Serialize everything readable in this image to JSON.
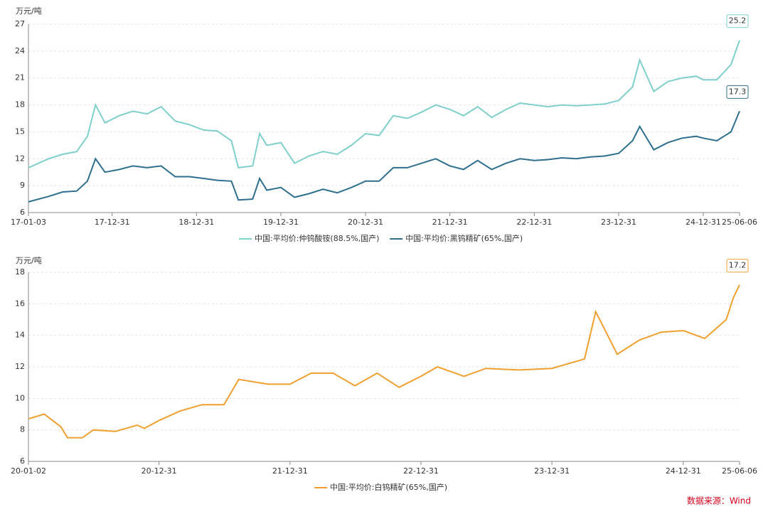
{
  "chart_data": [
    {
      "type": "line",
      "y_label": "万元/吨",
      "x": [
        "17-01-03",
        "17-03-31",
        "17-05-31",
        "17-07-31",
        "17-09-15",
        "17-10-20",
        "17-11-30",
        "18-01-31",
        "18-03-31",
        "18-05-31",
        "18-07-31",
        "18-09-30",
        "18-11-30",
        "19-01-31",
        "19-03-31",
        "19-05-31",
        "19-06-30",
        "19-08-31",
        "19-09-30",
        "19-10-31",
        "19-12-31",
        "20-02-28",
        "20-04-30",
        "20-06-30",
        "20-08-31",
        "20-10-31",
        "20-12-31",
        "21-02-28",
        "21-04-30",
        "21-06-30",
        "21-08-31",
        "21-10-31",
        "21-12-31",
        "22-02-28",
        "22-04-30",
        "22-06-30",
        "22-08-31",
        "22-10-31",
        "22-12-31",
        "23-02-28",
        "23-04-30",
        "23-06-30",
        "23-08-31",
        "23-10-31",
        "23-12-31",
        "24-02-29",
        "24-03-31",
        "24-05-31",
        "24-07-31",
        "24-09-30",
        "24-11-30",
        "24-12-31",
        "25-02-28",
        "25-04-30",
        "25-06-06"
      ],
      "series": [
        {
          "name": "中国:平均价:仲钨酸铵(88.5%,国产)",
          "color": "#7fcfcc",
          "values": [
            11.0,
            12.0,
            12.5,
            12.8,
            14.5,
            18.0,
            16.0,
            16.8,
            17.3,
            17.0,
            17.8,
            16.2,
            15.8,
            15.2,
            15.1,
            14.0,
            11.0,
            11.2,
            14.8,
            13.5,
            13.8,
            11.5,
            12.3,
            12.8,
            12.5,
            13.5,
            14.8,
            14.6,
            16.8,
            16.5,
            17.2,
            18.0,
            17.5,
            16.8,
            17.8,
            16.6,
            17.5,
            18.2,
            18.0,
            17.8,
            18.0,
            17.9,
            18.0,
            18.1,
            18.5,
            20.0,
            23.0,
            19.5,
            20.6,
            21.0,
            21.2,
            20.8,
            20.8,
            22.5,
            25.2
          ]
        },
        {
          "name": "中国:平均价:黑钨精矿(65%,国产)",
          "color": "#2e6f8e",
          "values": [
            7.2,
            7.8,
            8.3,
            8.4,
            9.5,
            12.0,
            10.5,
            10.8,
            11.2,
            11.0,
            11.2,
            10.0,
            10.0,
            9.8,
            9.6,
            9.5,
            7.4,
            7.5,
            9.8,
            8.5,
            8.8,
            7.7,
            8.1,
            8.6,
            8.2,
            8.8,
            9.5,
            9.5,
            11.0,
            11.0,
            11.5,
            12.0,
            11.2,
            10.8,
            11.8,
            10.8,
            11.5,
            12.0,
            11.8,
            11.9,
            12.1,
            12.0,
            12.2,
            12.3,
            12.6,
            14.0,
            15.6,
            13.0,
            13.8,
            14.3,
            14.5,
            14.3,
            14.0,
            15.0,
            17.3
          ]
        }
      ],
      "xlim": [
        "17-01-03",
        "25-06-06"
      ],
      "xticks": [
        "17-01-03",
        "17-12-31",
        "18-12-31",
        "19-12-31",
        "20-12-31",
        "21-12-31",
        "22-12-31",
        "23-12-31",
        "24-12-31",
        "25-06-06"
      ],
      "ylim": [
        6,
        27
      ],
      "yticks": [
        6,
        9,
        12,
        15,
        18,
        21,
        24,
        27
      ],
      "grid": true
    },
    {
      "type": "line",
      "y_label": "万元/吨",
      "x": [
        "20-01-02",
        "20-02-15",
        "20-04-01",
        "20-04-20",
        "20-05-31",
        "20-07-01",
        "20-08-31",
        "20-10-31",
        "20-11-20",
        "20-12-31",
        "21-02-28",
        "21-04-30",
        "21-06-30",
        "21-08-10",
        "21-10-31",
        "21-12-31",
        "22-02-28",
        "22-04-30",
        "22-06-30",
        "22-08-31",
        "22-10-31",
        "22-12-31",
        "23-02-15",
        "23-04-30",
        "23-06-30",
        "23-09-30",
        "23-12-31",
        "24-03-31",
        "24-05-01",
        "24-06-30",
        "24-08-31",
        "24-10-31",
        "24-12-31",
        "25-03-01",
        "25-04-30",
        "25-05-20",
        "25-06-06"
      ],
      "series": [
        {
          "name": "中国:平均价:白钨精矿(65%,国产)",
          "color": "#f0a030",
          "values": [
            8.7,
            9.0,
            8.2,
            7.5,
            7.5,
            8.0,
            7.9,
            8.3,
            8.1,
            8.6,
            9.2,
            9.6,
            9.6,
            11.2,
            10.9,
            10.9,
            11.6,
            11.6,
            10.8,
            11.6,
            10.7,
            11.4,
            12.0,
            11.4,
            11.9,
            11.8,
            11.9,
            12.5,
            15.5,
            12.8,
            13.7,
            14.2,
            14.3,
            13.8,
            15.0,
            16.4,
            17.2
          ]
        }
      ],
      "xlim": [
        "20-01-02",
        "25-06-06"
      ],
      "xticks": [
        "20-01-02",
        "20-12-31",
        "21-12-31",
        "22-12-31",
        "23-12-31",
        "24-12-31",
        "25-06-06"
      ],
      "ylim": [
        6,
        18
      ],
      "yticks": [
        6,
        8,
        10,
        12,
        14,
        16,
        18
      ],
      "grid": true
    }
  ],
  "source": "数据来源：Wind"
}
